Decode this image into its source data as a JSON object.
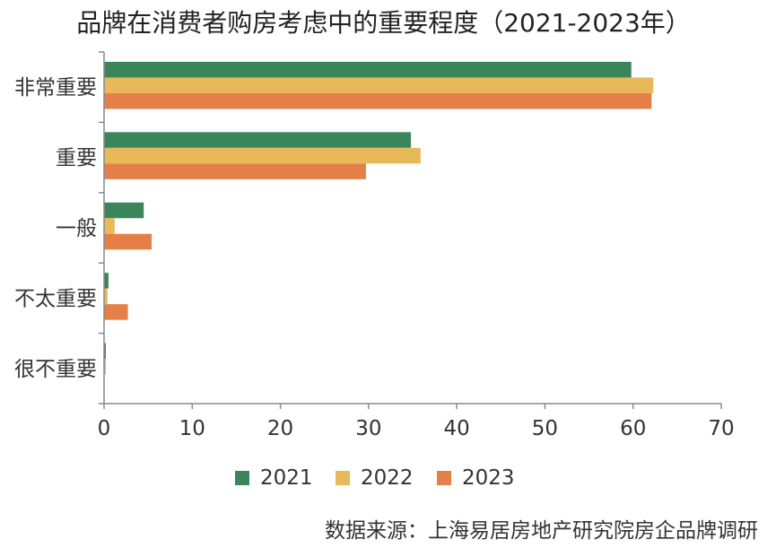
{
  "chart_data": {
    "type": "bar",
    "orientation": "horizontal",
    "title": "品牌在消费者购房考虑中的重要程度（2021-2023年）",
    "categories": [
      "非常重要",
      "重要",
      "一般",
      "不太重要",
      "很不重要"
    ],
    "series": [
      {
        "name": "2021",
        "color": "#3a865a",
        "values": [
          59.8,
          34.8,
          4.5,
          0.5,
          0.2
        ]
      },
      {
        "name": "2022",
        "color": "#e8b95a",
        "values": [
          62.3,
          35.9,
          1.2,
          0.4,
          0.2
        ]
      },
      {
        "name": "2023",
        "color": "#e57f48",
        "values": [
          62.1,
          29.7,
          5.4,
          2.7,
          0.0
        ]
      }
    ],
    "xlim": [
      0,
      70
    ],
    "xticks": [
      0,
      10,
      20,
      30,
      40,
      50,
      60,
      70
    ],
    "xlabel": "",
    "ylabel": "",
    "legend_position": "bottom",
    "source": "数据来源：上海易居房地产研究院房企品牌调研"
  }
}
